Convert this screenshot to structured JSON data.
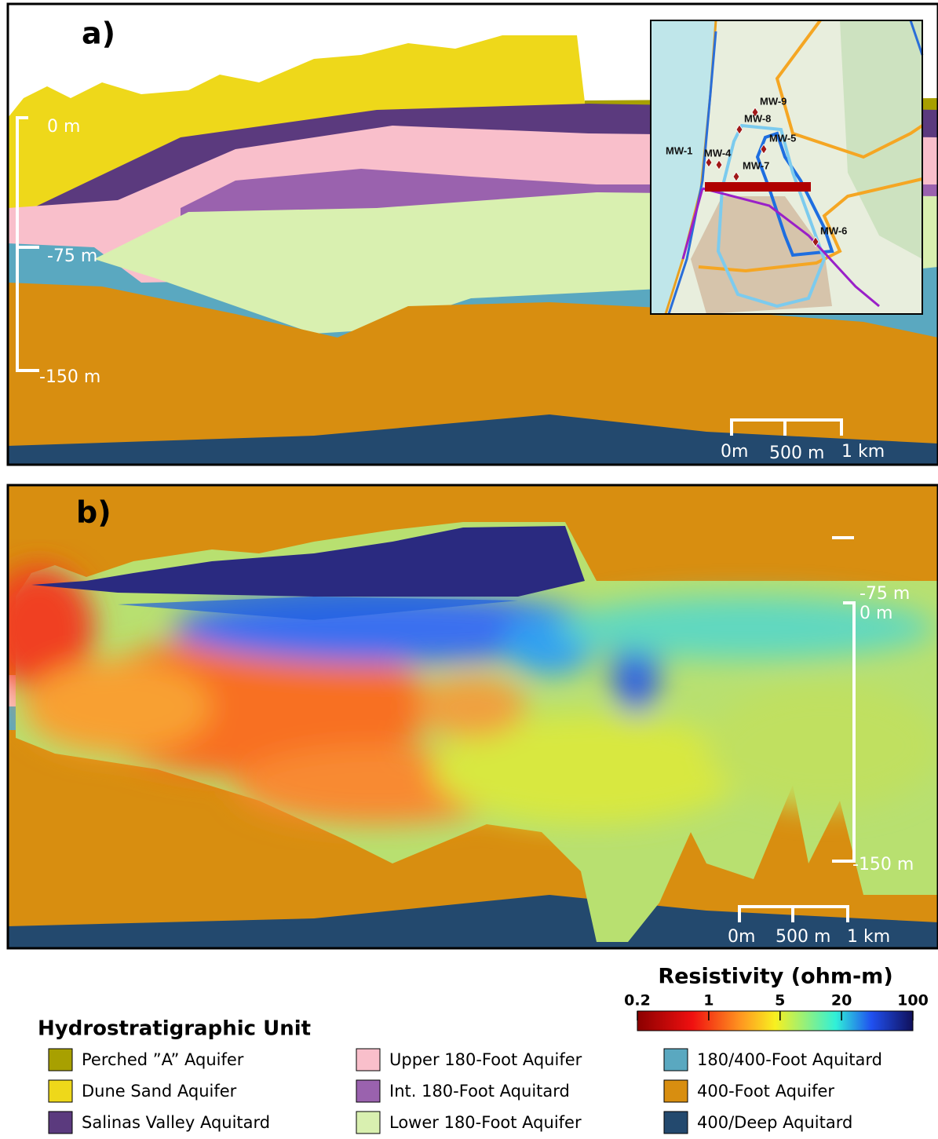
{
  "panels": [
    {
      "label": "a)",
      "depth_labels": [
        "0 m",
        "-75 m",
        "-150 m"
      ],
      "scale_labels": [
        "0m",
        "500 m",
        "1 km"
      ]
    },
    {
      "label": "b)",
      "depth_labels": [
        "0 m",
        "-75 m",
        "-150 m"
      ],
      "scale_labels": [
        "0m",
        "500 m",
        "1 km"
      ]
    }
  ],
  "map": {
    "wells": [
      "MW-9",
      "MW-8",
      "MW-5",
      "MW-1",
      "MW-4",
      "MW-7",
      "MW-6"
    ]
  },
  "colorbar": {
    "title": "Resistivity (ohm-m)",
    "ticks": [
      0.2,
      1,
      5,
      20,
      100
    ],
    "log": true
  },
  "legend": {
    "title": "Hydrostratigraphic Unit",
    "items": [
      {
        "label": "Perched ”A” Aquifer",
        "color": "#a8a000"
      },
      {
        "label": "Dune Sand Aquifer",
        "color": "#eed81a"
      },
      {
        "label": "Salinas Valley Aquitard",
        "color": "#5b3a7e"
      },
      {
        "label": "Upper 180-Foot Aquifer",
        "color": "#f9bfcb"
      },
      {
        "label": "Int. 180-Foot Aquitard",
        "color": "#9a62ae"
      },
      {
        "label": "Lower 180-Foot Aquifer",
        "color": "#d9f0b0"
      },
      {
        "label": "180/400-Foot Aquitard",
        "color": "#5aa8c0"
      },
      {
        "label": "400-Foot Aquifer",
        "color": "#d88e10"
      },
      {
        "label": "400/Deep Aquitard",
        "color": "#23496e"
      }
    ]
  }
}
